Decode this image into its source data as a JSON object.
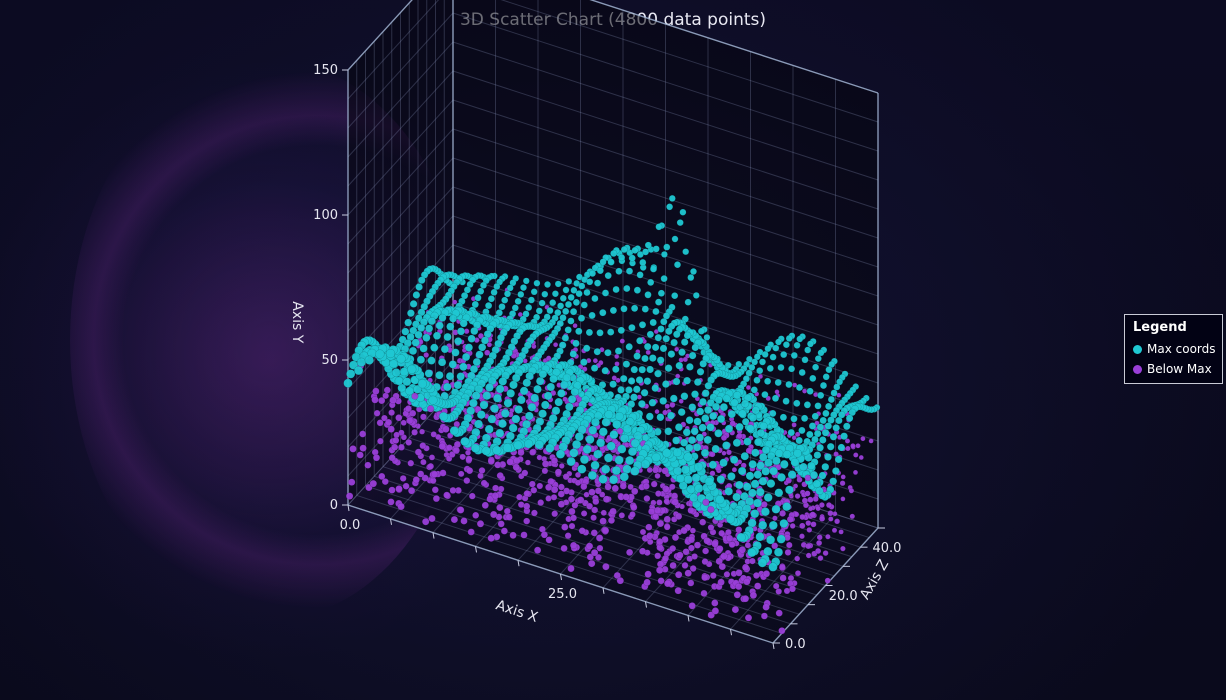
{
  "chart_data": {
    "type": "scatter",
    "title": "3D Scatter Chart (4800 data points)",
    "point_count": 4800,
    "axes": {
      "x": {
        "label": "Axis X",
        "range": [
          0,
          50
        ],
        "ticks": [
          "0.0",
          "25.0"
        ]
      },
      "y": {
        "label": "Axis Y",
        "range": [
          0,
          150
        ],
        "ticks": [
          "0",
          "50",
          "100",
          "150"
        ]
      },
      "z": {
        "label": "Axis Z",
        "range": [
          0,
          48
        ],
        "ticks": [
          "0.0",
          "20.0",
          "40.0"
        ]
      }
    },
    "grid": true,
    "legend_position": "right",
    "legend": {
      "title": "Legend",
      "items": [
        {
          "label": "Max coords",
          "color": "#1fc8d3"
        },
        {
          "label": "Below Max",
          "color": "#9a3fd9"
        }
      ]
    },
    "series": [
      {
        "name": "Max coords",
        "color": "#1fc8d3",
        "description_grid": {
          "x_start": 0,
          "x_step": 1,
          "x_count": 50,
          "z_start": 0,
          "z_step": 1,
          "z_count": 48
        },
        "surface_samples": [
          {
            "x": 0,
            "z": 48,
            "y": 48
          },
          {
            "x": 10,
            "z": 40,
            "y": 62
          },
          {
            "x": 25,
            "z": 45,
            "y": 76
          },
          {
            "x": 28,
            "z": 45,
            "y": 100
          },
          {
            "x": 40,
            "z": 40,
            "y": 66
          },
          {
            "x": 50,
            "z": 44,
            "y": 56
          },
          {
            "x": 50,
            "z": 20,
            "y": 50
          },
          {
            "x": 30,
            "z": 20,
            "y": 42
          },
          {
            "x": 20,
            "z": 10,
            "y": 55
          }
        ]
      },
      {
        "name": "Below Max",
        "color": "#9a3fd9",
        "y_range": [
          0,
          45
        ]
      }
    ]
  }
}
